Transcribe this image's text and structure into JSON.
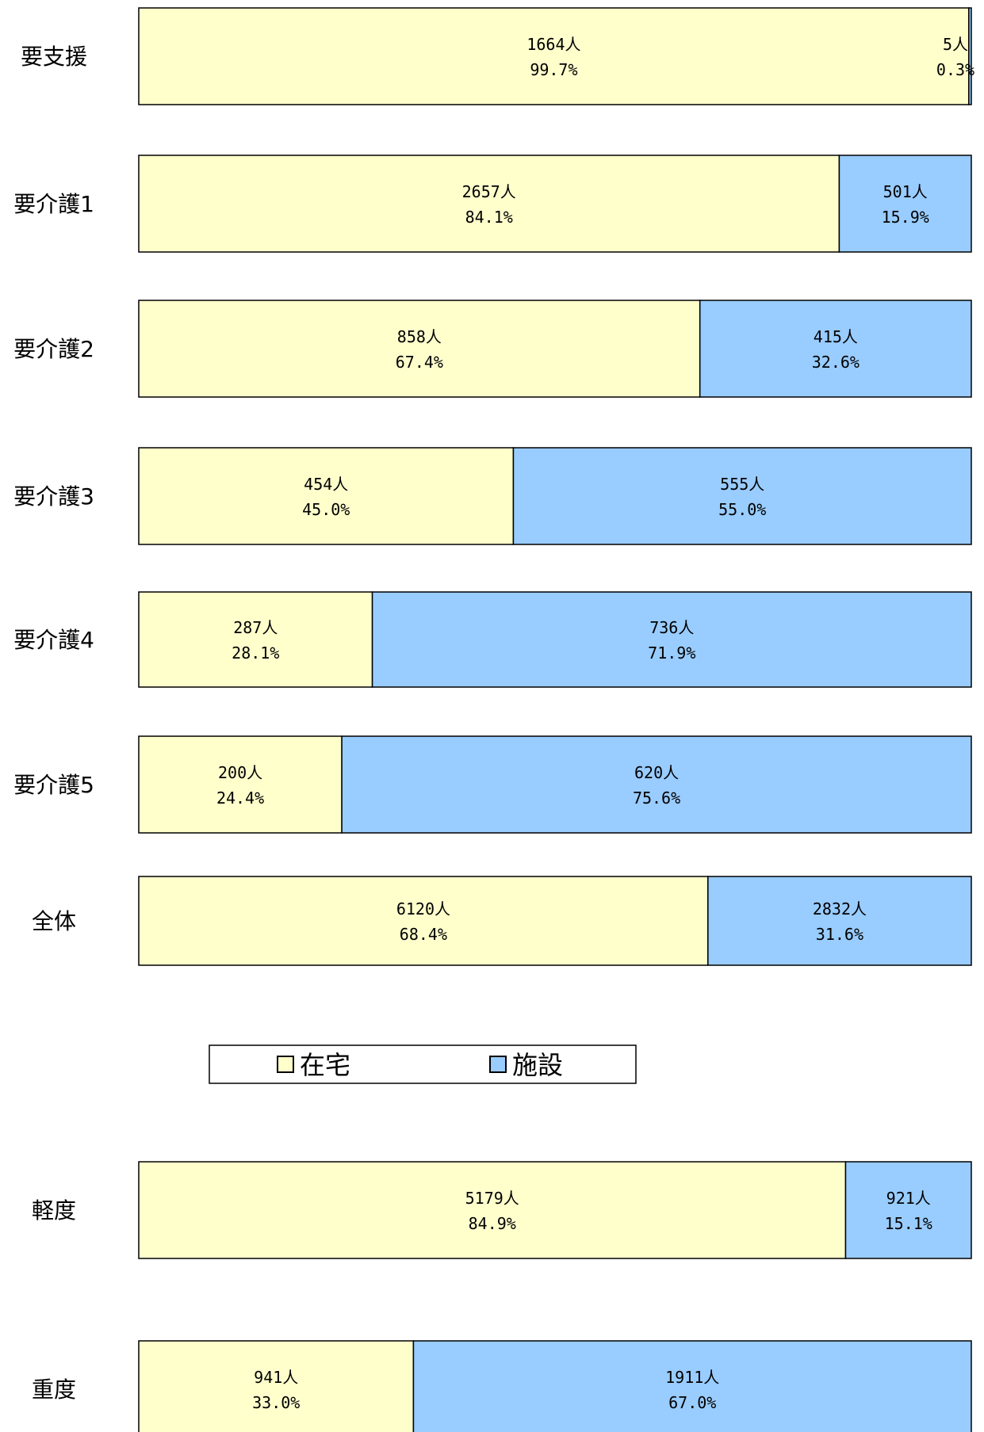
{
  "chart_data": [
    {
      "type": "bar",
      "orientation": "horizontal",
      "stacked": "percent",
      "categories": [
        "要支援",
        "要介護1",
        "要介護2",
        "要介護3",
        "要介護4",
        "要介護5",
        "全体"
      ],
      "series": [
        {
          "name": "在宅",
          "values": [
            1664,
            2657,
            858,
            454,
            287,
            200,
            6120
          ],
          "percent": [
            "99.7%",
            "84.1%",
            "67.4%",
            "45.0%",
            "28.1%",
            "24.4%",
            "68.4%"
          ]
        },
        {
          "name": "施設",
          "values": [
            5,
            501,
            415,
            555,
            736,
            620,
            2832
          ],
          "percent": [
            "0.3%",
            "15.9%",
            "32.6%",
            "55.0%",
            "71.9%",
            "75.6%",
            "31.6%"
          ]
        }
      ],
      "unit": "人",
      "colors": {
        "在宅": "#ffffcc",
        "施設": "#99ccff"
      },
      "legend": "bottom-center",
      "grid": false
    },
    {
      "type": "bar",
      "orientation": "horizontal",
      "stacked": "percent",
      "categories": [
        "軽度",
        "重度"
      ],
      "series": [
        {
          "name": "在宅",
          "values": [
            5179,
            941
          ],
          "percent": [
            "84.9%",
            "33.0%"
          ]
        },
        {
          "name": "施設",
          "values": [
            921,
            1911
          ],
          "percent": [
            "15.1%",
            "67.0%"
          ]
        }
      ],
      "unit": "人",
      "colors": {
        "在宅": "#ffffcc",
        "施設": "#99ccff"
      },
      "grid": false
    }
  ],
  "legend": {
    "items": [
      {
        "name": "在宅",
        "color": "#ffffcc"
      },
      {
        "name": "施設",
        "color": "#99ccff"
      }
    ]
  }
}
